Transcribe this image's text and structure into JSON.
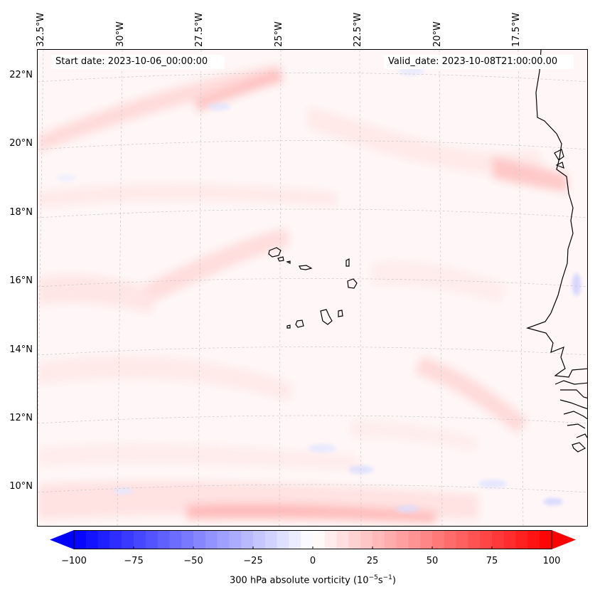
{
  "header": {
    "start_date": "Start date: 2023-10-06_00:00:00",
    "valid_date": "Valid_date: 2023-10-08T21:00:00.00"
  },
  "map": {
    "region": "Eastern tropical North Atlantic / Cape Verde / West Africa coast",
    "field": "300 hPa absolute vorticity",
    "lon_labels": [
      "32.5°W",
      "30°W",
      "27.5°W",
      "25°W",
      "22.5°W",
      "20°W",
      "17.5°W"
    ],
    "lat_labels": [
      "22°N",
      "20°N",
      "18°N",
      "16°N",
      "14°N",
      "12°N",
      "10°N"
    ],
    "gridlines": true,
    "coastline_color": "#000000"
  },
  "colorbar": {
    "label_prefix": "300 hPa absolute vorticity (10",
    "label_exp1": "−5",
    "label_mid": "s",
    "label_exp2": "−1",
    "label_suffix": ")",
    "ticks": [
      "−100",
      "−75",
      "−50",
      "−25",
      "0",
      "25",
      "50",
      "75",
      "100"
    ],
    "min": -100,
    "max": 100,
    "step": 5,
    "cmap": "bwr",
    "extend": "both",
    "color_min": "#0000ff",
    "color_mid": "#ffffff",
    "color_max": "#ff0000"
  }
}
